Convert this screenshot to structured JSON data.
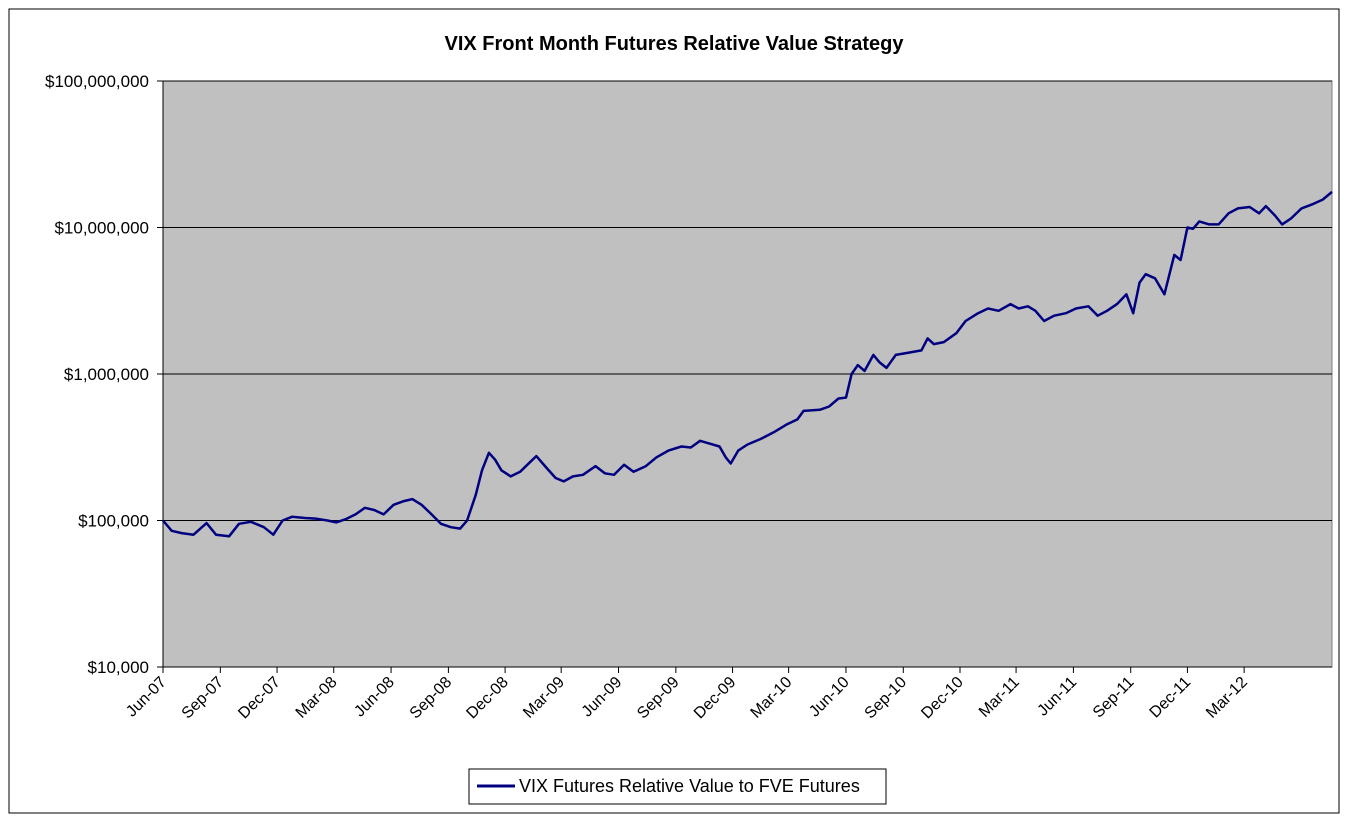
{
  "chart_data": {
    "type": "line",
    "title": "VIX Front Month Futures Relative Value Strategy",
    "xlabel": "",
    "ylabel": "",
    "y_scale": "log",
    "ylim": [
      10000,
      100000000
    ],
    "y_ticks": [
      10000,
      100000,
      1000000,
      10000000,
      100000000
    ],
    "y_tick_labels": [
      "$10,000",
      "$100,000",
      "$1,000,000",
      "$10,000,000",
      "$100,000,000"
    ],
    "x_tick_labels": [
      "Jun-07",
      "Sep-07",
      "Dec-07",
      "Mar-08",
      "Jun-08",
      "Sep-08",
      "Dec-08",
      "Mar-09",
      "Jun-09",
      "Sep-09",
      "Dec-09",
      "Mar-10",
      "Jun-10",
      "Sep-10",
      "Dec-10",
      "Mar-11",
      "Jun-11",
      "Sep-11",
      "Dec-11",
      "Mar-12"
    ],
    "xlim": [
      "2007-06-01",
      "2012-07-20"
    ],
    "grid": true,
    "legend_position": "bottom-center",
    "background_color": "#c0c0c0",
    "line_color": "#000080",
    "series": [
      {
        "name": "VIX Futures Relative Value to FVE Futures",
        "points": [
          [
            "2007-06-01",
            100000
          ],
          [
            "2007-06-15",
            85000
          ],
          [
            "2007-07-01",
            82000
          ],
          [
            "2007-07-20",
            80000
          ],
          [
            "2007-08-10",
            96000
          ],
          [
            "2007-08-25",
            80000
          ],
          [
            "2007-09-15",
            78000
          ],
          [
            "2007-10-01",
            95000
          ],
          [
            "2007-10-20",
            98000
          ],
          [
            "2007-11-10",
            90000
          ],
          [
            "2007-11-25",
            80000
          ],
          [
            "2007-12-10",
            100000
          ],
          [
            "2007-12-25",
            106000
          ],
          [
            "2008-01-15",
            104000
          ],
          [
            "2008-02-01",
            103000
          ],
          [
            "2008-02-20",
            100000
          ],
          [
            "2008-03-05",
            97000
          ],
          [
            "2008-03-20",
            102000
          ],
          [
            "2008-04-05",
            110000
          ],
          [
            "2008-04-20",
            122000
          ],
          [
            "2008-05-05",
            118000
          ],
          [
            "2008-05-20",
            110000
          ],
          [
            "2008-06-05",
            128000
          ],
          [
            "2008-06-20",
            135000
          ],
          [
            "2008-07-05",
            140000
          ],
          [
            "2008-07-20",
            128000
          ],
          [
            "2008-08-05",
            110000
          ],
          [
            "2008-08-20",
            95000
          ],
          [
            "2008-09-05",
            90000
          ],
          [
            "2008-09-20",
            88000
          ],
          [
            "2008-10-01",
            100000
          ],
          [
            "2008-10-15",
            150000
          ],
          [
            "2008-10-25",
            220000
          ],
          [
            "2008-11-05",
            290000
          ],
          [
            "2008-11-15",
            260000
          ],
          [
            "2008-11-25",
            220000
          ],
          [
            "2008-12-10",
            200000
          ],
          [
            "2008-12-25",
            215000
          ],
          [
            "2009-01-10",
            250000
          ],
          [
            "2009-01-20",
            275000
          ],
          [
            "2009-02-05",
            230000
          ],
          [
            "2009-02-20",
            195000
          ],
          [
            "2009-03-05",
            185000
          ],
          [
            "2009-03-20",
            200000
          ],
          [
            "2009-04-05",
            205000
          ],
          [
            "2009-04-25",
            235000
          ],
          [
            "2009-05-10",
            210000
          ],
          [
            "2009-05-25",
            205000
          ],
          [
            "2009-06-10",
            240000
          ],
          [
            "2009-06-25",
            215000
          ],
          [
            "2009-07-15",
            235000
          ],
          [
            "2009-08-01",
            270000
          ],
          [
            "2009-08-20",
            300000
          ],
          [
            "2009-09-10",
            320000
          ],
          [
            "2009-09-25",
            315000
          ],
          [
            "2009-10-10",
            350000
          ],
          [
            "2009-10-25",
            335000
          ],
          [
            "2009-11-10",
            320000
          ],
          [
            "2009-11-20",
            270000
          ],
          [
            "2009-11-28",
            245000
          ],
          [
            "2009-12-10",
            300000
          ],
          [
            "2009-12-25",
            330000
          ],
          [
            "2010-01-15",
            360000
          ],
          [
            "2010-02-05",
            400000
          ],
          [
            "2010-02-25",
            450000
          ],
          [
            "2010-03-15",
            490000
          ],
          [
            "2010-03-25",
            560000
          ],
          [
            "2010-04-20",
            570000
          ],
          [
            "2010-05-05",
            600000
          ],
          [
            "2010-05-20",
            680000
          ],
          [
            "2010-06-01",
            690000
          ],
          [
            "2010-06-10",
            1000000
          ],
          [
            "2010-06-20",
            1150000
          ],
          [
            "2010-07-01",
            1050000
          ],
          [
            "2010-07-15",
            1350000
          ],
          [
            "2010-07-25",
            1200000
          ],
          [
            "2010-08-05",
            1100000
          ],
          [
            "2010-08-20",
            1350000
          ],
          [
            "2010-09-10",
            1400000
          ],
          [
            "2010-09-30",
            1450000
          ],
          [
            "2010-10-10",
            1750000
          ],
          [
            "2010-10-20",
            1600000
          ],
          [
            "2010-11-05",
            1650000
          ],
          [
            "2010-11-25",
            1900000
          ],
          [
            "2010-12-10",
            2300000
          ],
          [
            "2010-12-30",
            2600000
          ],
          [
            "2011-01-15",
            2800000
          ],
          [
            "2011-02-01",
            2700000
          ],
          [
            "2011-02-20",
            3000000
          ],
          [
            "2011-03-05",
            2800000
          ],
          [
            "2011-03-20",
            2900000
          ],
          [
            "2011-04-01",
            2700000
          ],
          [
            "2011-04-15",
            2300000
          ],
          [
            "2011-05-01",
            2500000
          ],
          [
            "2011-05-20",
            2600000
          ],
          [
            "2011-06-05",
            2800000
          ],
          [
            "2011-06-25",
            2900000
          ],
          [
            "2011-07-10",
            2500000
          ],
          [
            "2011-07-25",
            2700000
          ],
          [
            "2011-08-10",
            3000000
          ],
          [
            "2011-08-25",
            3500000
          ],
          [
            "2011-09-05",
            2600000
          ],
          [
            "2011-09-15",
            4200000
          ],
          [
            "2011-09-25",
            4800000
          ],
          [
            "2011-10-10",
            4500000
          ],
          [
            "2011-10-25",
            3500000
          ],
          [
            "2011-11-10",
            6500000
          ],
          [
            "2011-11-20",
            6000000
          ],
          [
            "2011-12-01",
            10000000
          ],
          [
            "2011-12-10",
            9800000
          ],
          [
            "2011-12-20",
            11000000
          ],
          [
            "2012-01-05",
            10500000
          ],
          [
            "2012-01-20",
            10500000
          ],
          [
            "2012-02-05",
            12500000
          ],
          [
            "2012-02-20",
            13500000
          ],
          [
            "2012-03-10",
            13800000
          ],
          [
            "2012-03-25",
            12500000
          ],
          [
            "2012-04-05",
            14000000
          ],
          [
            "2012-04-20",
            12000000
          ],
          [
            "2012-05-01",
            10500000
          ],
          [
            "2012-05-15",
            11500000
          ],
          [
            "2012-06-01",
            13500000
          ],
          [
            "2012-06-20",
            14500000
          ],
          [
            "2012-07-05",
            15500000
          ],
          [
            "2012-07-20",
            17500000
          ]
        ]
      }
    ]
  }
}
